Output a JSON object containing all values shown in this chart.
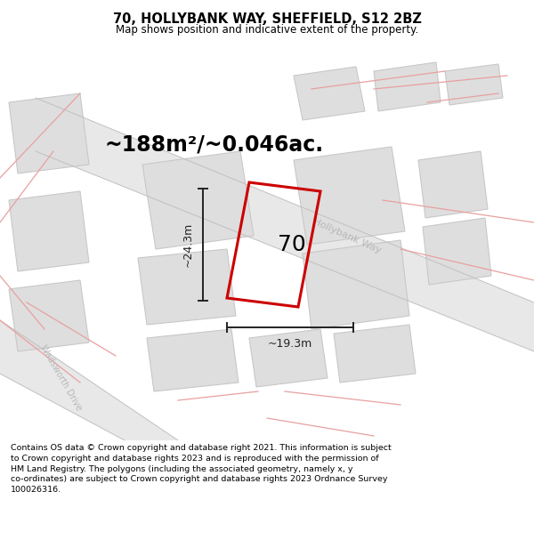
{
  "title": "70, HOLLYBANK WAY, SHEFFIELD, S12 2BZ",
  "subtitle": "Map shows position and indicative extent of the property.",
  "footer": "Contains OS data © Crown copyright and database right 2021. This information is subject\nto Crown copyright and database rights 2023 and is reproduced with the permission of\nHM Land Registry. The polygons (including the associated geometry, namely x, y\nco-ordinates) are subject to Crown copyright and database rights 2023 Ordnance Survey\n100026316.",
  "area_label": "~188m²/~0.046ac.",
  "width_label": "~19.3m",
  "height_label": "~24.3m",
  "number_label": "70",
  "map_bg": "#f5f5f5",
  "road_fill": "#e8e8e8",
  "building_color": "#dedede",
  "building_outline": "#c8c8c8",
  "pink": "#e8a0a0",
  "street_label_color": "#b0b0b0",
  "red_outline": "#cc0000",
  "dim_color": "#222222",
  "title_fontsize": 10.5,
  "subtitle_fontsize": 8.5,
  "footer_fontsize": 6.8,
  "area_fontsize": 17,
  "dim_fontsize": 9,
  "num_fontsize": 18,
  "hollybank_label_color": "#b8b8b8",
  "wadsworth_label_color": "#b8b8b8"
}
